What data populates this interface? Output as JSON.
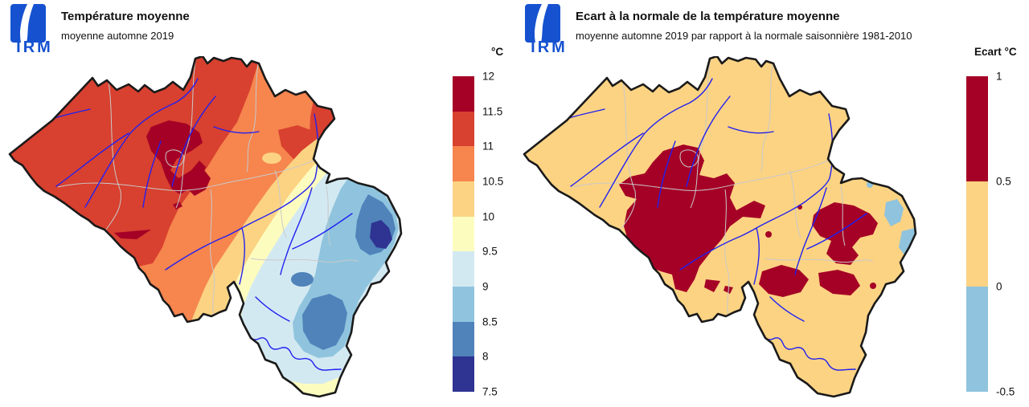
{
  "left_panel": {
    "logo_text": "IRM",
    "title": "Température moyenne",
    "subtitle": "moyenne automne 2019",
    "legend": {
      "title": "°C",
      "tick_labels": [
        "12",
        "11.5",
        "11",
        "10.5",
        "10",
        "9.5",
        "9",
        "8.5",
        "8",
        "7.5"
      ],
      "colors": [
        "#a50026",
        "#d8402f",
        "#f6854e",
        "#fcd383",
        "#fdfcbf",
        "#d3e9f2",
        "#90c4de",
        "#4f83ba",
        "#2f3392"
      ]
    }
  },
  "right_panel": {
    "logo_text": "IRM",
    "title": "Ecart à la normale de la température moyenne",
    "subtitle": "moyenne automne 2019 par rapport à la normale saisonnière 1981-2010",
    "legend": {
      "title": "Ecart °C",
      "tick_labels": [
        "1",
        "0.5",
        "0",
        "-0.5"
      ],
      "colors": [
        "#a50026",
        "#fcd383",
        "#8fc3de"
      ]
    }
  },
  "map": {
    "region": "Belgium",
    "colors": {
      "t12": "#a50026",
      "t115": "#d8402f",
      "t11": "#f6854e",
      "t105": "#fcd383",
      "t10": "#fdfcbf",
      "t95": "#d3e9f2",
      "t9": "#90c4de",
      "t85": "#4f83ba",
      "t8": "#2f3392",
      "anom_pos": "#a50026",
      "anom_mid": "#fcd383",
      "anom_neg": "#8fc3de",
      "country_border": "#1a1a1a",
      "province_border": "#c9c9c9",
      "river": "#2121f0",
      "logo_blue": "#1652d0"
    }
  },
  "chart_data": [
    {
      "type": "choropleth_map",
      "title": "Température moyenne",
      "subtitle": "moyenne automne 2019",
      "region": "Belgium",
      "unit": "°C",
      "scale_breaks": [
        7.5,
        8,
        8.5,
        9,
        9.5,
        10,
        10.5,
        11,
        11.5,
        12
      ],
      "scale_colors_low_to_high": [
        "#2f3392",
        "#4f83ba",
        "#90c4de",
        "#d3e9f2",
        "#fdfcbf",
        "#fcd383",
        "#f6854e",
        "#d8402f",
        "#a50026"
      ],
      "pattern": "11-12 °C over the northwest and centre (warmest pockets 11.5-12 °C around Brussels-Antwerp), grading through 10-11 °C in the middle of the country to 7.5-8.5 °C over the Ardennes and High Fens in the southeast"
    },
    {
      "type": "choropleth_map",
      "title": "Ecart à la normale de la température moyenne",
      "subtitle": "moyenne automne 2019 par rapport à la normale saisonnière 1981-2010",
      "region": "Belgium",
      "unit": "Ecart °C",
      "scale_breaks": [
        -0.5,
        0,
        0.5,
        1
      ],
      "scale_colors_low_to_high": [
        "#8fc3de",
        "#fcd383",
        "#a50026"
      ],
      "pattern": "mostly 0 to +0.5 °C above normal; +0.5 to +1 °C over Hainaut/central-south Belgium and scattered patches along the Meuse, Semois and around Liège; slightly below normal (0 to -0.5 °C) in the far east near the German border"
    }
  ]
}
